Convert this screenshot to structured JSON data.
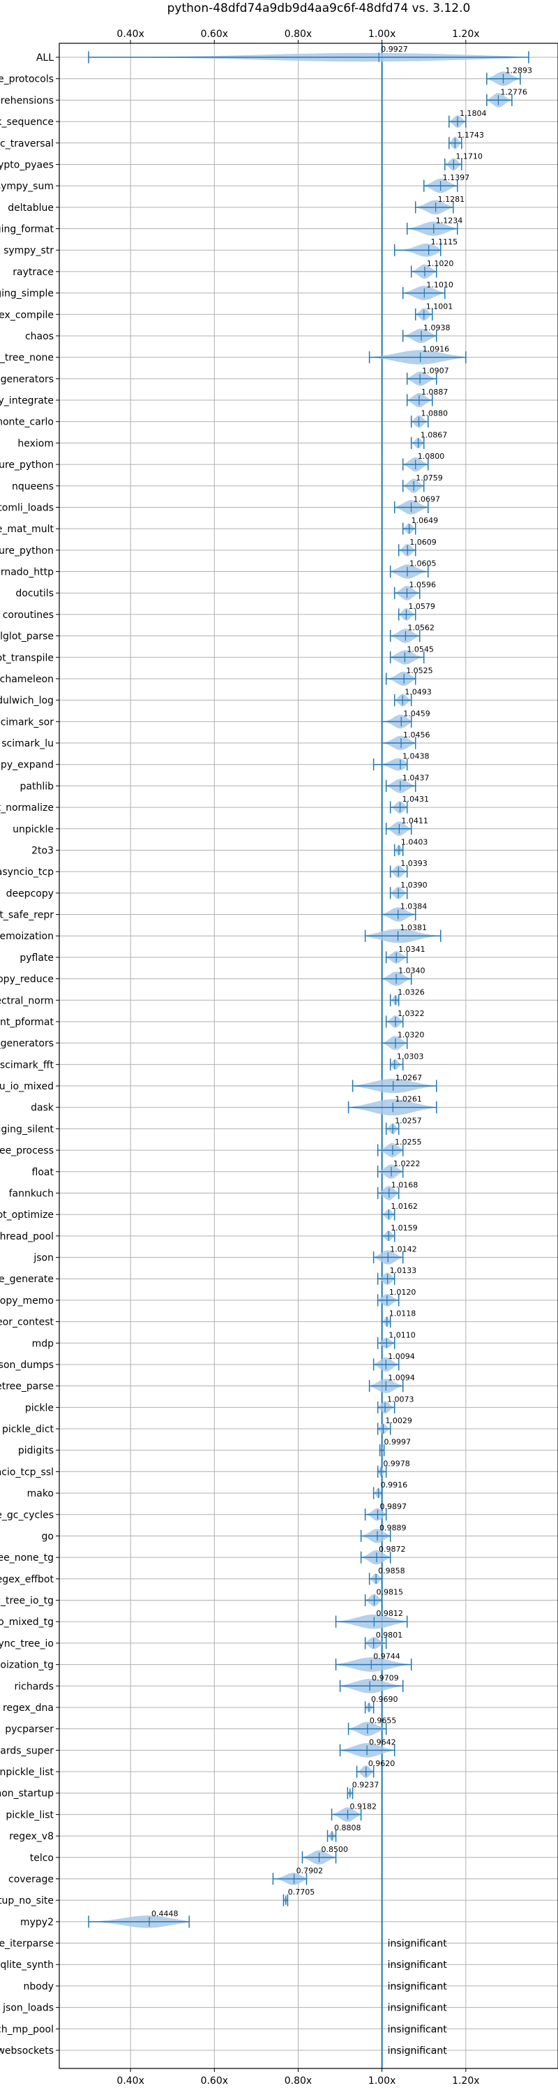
{
  "chart_data": {
    "type": "violin",
    "title": "python-48dfd74a9db9d4aa9c6f-48dfd74 vs. 3.12.0",
    "xlim": [
      0.23,
      1.42
    ],
    "xticks": [
      0.4,
      0.6,
      0.8,
      1.0,
      1.2
    ],
    "xtick_labels": [
      "0.40x",
      "0.60x",
      "0.80x",
      "1.00x",
      "1.20x"
    ],
    "reference_line": 1.0,
    "grid": true,
    "colors": {
      "violin": "#a8c8e8",
      "line": "#1f77b4",
      "grid": "#b0b0b0"
    },
    "insignificant_text": "insignificant",
    "benchmarks": [
      {
        "name": "ALL",
        "value": 0.9927,
        "label": "0.9927",
        "min": 0.3,
        "max": 1.35,
        "width": 0.5
      },
      {
        "name": "typing_runtime_protocols",
        "value": 1.2893,
        "label": "1.2893",
        "min": 1.25,
        "max": 1.33,
        "width": 0.8
      },
      {
        "name": "comprehensions",
        "value": 1.2776,
        "label": "1.2776",
        "min": 1.25,
        "max": 1.31,
        "width": 0.8
      },
      {
        "name": "unpack_sequence",
        "value": 1.1804,
        "label": "1.1804",
        "min": 1.16,
        "max": 1.2,
        "width": 0.7
      },
      {
        "name": "gc_traversal",
        "value": 1.1743,
        "label": "1.1743",
        "min": 1.16,
        "max": 1.19,
        "width": 0.7
      },
      {
        "name": "crypto_pyaes",
        "value": 1.171,
        "label": "1.1710",
        "min": 1.15,
        "max": 1.19,
        "width": 0.7
      },
      {
        "name": "sympy_sum",
        "value": 1.1397,
        "label": "1.1397",
        "min": 1.1,
        "max": 1.18,
        "width": 0.8
      },
      {
        "name": "deltablue",
        "value": 1.1281,
        "label": "1.1281",
        "min": 1.08,
        "max": 1.17,
        "width": 0.8
      },
      {
        "name": "logging_format",
        "value": 1.1234,
        "label": "1.1234",
        "min": 1.06,
        "max": 1.18,
        "width": 0.8
      },
      {
        "name": "sympy_str",
        "value": 1.1115,
        "label": "1.1115",
        "min": 1.03,
        "max": 1.14,
        "width": 0.8
      },
      {
        "name": "raytrace",
        "value": 1.102,
        "label": "1.1020",
        "min": 1.07,
        "max": 1.13,
        "width": 0.8
      },
      {
        "name": "logging_simple",
        "value": 1.101,
        "label": "1.1010",
        "min": 1.05,
        "max": 1.15,
        "width": 0.8
      },
      {
        "name": "regex_compile",
        "value": 1.1001,
        "label": "1.1001",
        "min": 1.08,
        "max": 1.12,
        "width": 0.7
      },
      {
        "name": "chaos",
        "value": 1.0938,
        "label": "1.0938",
        "min": 1.05,
        "max": 1.13,
        "width": 0.8
      },
      {
        "name": "async_tree_none",
        "value": 1.0916,
        "label": "1.0916",
        "min": 0.97,
        "max": 1.2,
        "width": 0.8
      },
      {
        "name": "generators",
        "value": 1.0907,
        "label": "1.0907",
        "min": 1.06,
        "max": 1.13,
        "width": 0.8
      },
      {
        "name": "sympy_integrate",
        "value": 1.0887,
        "label": "1.0887",
        "min": 1.06,
        "max": 1.12,
        "width": 0.8
      },
      {
        "name": "scimark_monte_carlo",
        "value": 1.088,
        "label": "1.0880",
        "min": 1.07,
        "max": 1.11,
        "width": 0.7
      },
      {
        "name": "hexiom",
        "value": 1.0867,
        "label": "1.0867",
        "min": 1.07,
        "max": 1.1,
        "width": 0.6
      },
      {
        "name": "pickle_pure_python",
        "value": 1.08,
        "label": "1.0800",
        "min": 1.05,
        "max": 1.11,
        "width": 0.8
      },
      {
        "name": "nqueens",
        "value": 1.0759,
        "label": "1.0759",
        "min": 1.05,
        "max": 1.1,
        "width": 0.8
      },
      {
        "name": "tomli_loads",
        "value": 1.0697,
        "label": "1.0697",
        "min": 1.03,
        "max": 1.11,
        "width": 0.8
      },
      {
        "name": "scimark_sparse_mat_mult",
        "value": 1.0649,
        "label": "1.0649",
        "min": 1.05,
        "max": 1.08,
        "width": 0.6
      },
      {
        "name": "unpickle_pure_python",
        "value": 1.0609,
        "label": "1.0609",
        "min": 1.04,
        "max": 1.08,
        "width": 0.7
      },
      {
        "name": "tornado_http",
        "value": 1.0605,
        "label": "1.0605",
        "min": 1.02,
        "max": 1.11,
        "width": 0.8
      },
      {
        "name": "docutils",
        "value": 1.0596,
        "label": "1.0596",
        "min": 1.03,
        "max": 1.09,
        "width": 0.8
      },
      {
        "name": "coroutines",
        "value": 1.0579,
        "label": "1.0579",
        "min": 1.04,
        "max": 1.08,
        "width": 0.7
      },
      {
        "name": "sqlglot_parse",
        "value": 1.0562,
        "label": "1.0562",
        "min": 1.02,
        "max": 1.09,
        "width": 0.8
      },
      {
        "name": "sqlglot_transpile",
        "value": 1.0545,
        "label": "1.0545",
        "min": 1.02,
        "max": 1.1,
        "width": 0.8
      },
      {
        "name": "chameleon",
        "value": 1.0525,
        "label": "1.0525",
        "min": 1.01,
        "max": 1.08,
        "width": 0.8
      },
      {
        "name": "dulwich_log",
        "value": 1.0493,
        "label": "1.0493",
        "min": 1.03,
        "max": 1.07,
        "width": 0.7
      },
      {
        "name": "scimark_sor",
        "value": 1.0459,
        "label": "1.0459",
        "min": 1.0,
        "max": 1.07,
        "width": 0.8
      },
      {
        "name": "scimark_lu",
        "value": 1.0456,
        "label": "1.0456",
        "min": 1.0,
        "max": 1.08,
        "width": 0.8
      },
      {
        "name": "sympy_expand",
        "value": 1.0438,
        "label": "1.0438",
        "min": 0.98,
        "max": 1.06,
        "width": 0.8
      },
      {
        "name": "pathlib",
        "value": 1.0437,
        "label": "1.0437",
        "min": 1.01,
        "max": 1.08,
        "width": 0.8
      },
      {
        "name": "sqlglot_normalize",
        "value": 1.0431,
        "label": "1.0431",
        "min": 1.02,
        "max": 1.06,
        "width": 0.7
      },
      {
        "name": "unpickle",
        "value": 1.0411,
        "label": "1.0411",
        "min": 1.01,
        "max": 1.07,
        "width": 0.8
      },
      {
        "name": "2to3",
        "value": 1.0403,
        "label": "1.0403",
        "min": 1.03,
        "max": 1.05,
        "width": 0.6
      },
      {
        "name": "asyncio_tcp",
        "value": 1.0393,
        "label": "1.0393",
        "min": 1.02,
        "max": 1.06,
        "width": 0.7
      },
      {
        "name": "deepcopy",
        "value": 1.039,
        "label": "1.0390",
        "min": 1.02,
        "max": 1.06,
        "width": 0.7
      },
      {
        "name": "pprint_safe_repr",
        "value": 1.0384,
        "label": "1.0384",
        "min": 1.0,
        "max": 1.08,
        "width": 0.8
      },
      {
        "name": "async_tree_memoization",
        "value": 1.0381,
        "label": "1.0381",
        "min": 0.96,
        "max": 1.14,
        "width": 0.8
      },
      {
        "name": "pyflate",
        "value": 1.0341,
        "label": "1.0341",
        "min": 1.01,
        "max": 1.06,
        "width": 0.7
      },
      {
        "name": "deepcopy_reduce",
        "value": 1.034,
        "label": "1.0340",
        "min": 1.0,
        "max": 1.07,
        "width": 0.8
      },
      {
        "name": "spectral_norm",
        "value": 1.0326,
        "label": "1.0326",
        "min": 1.02,
        "max": 1.04,
        "width": 0.6
      },
      {
        "name": "pprint_pformat",
        "value": 1.0322,
        "label": "1.0322",
        "min": 1.01,
        "max": 1.05,
        "width": 0.7
      },
      {
        "name": "async_generators",
        "value": 1.032,
        "label": "1.0320",
        "min": 1.0,
        "max": 1.06,
        "width": 0.8
      },
      {
        "name": "scimark_fft",
        "value": 1.0303,
        "label": "1.0303",
        "min": 1.02,
        "max": 1.05,
        "width": 0.6
      },
      {
        "name": "async_tree_cpu_io_mixed",
        "value": 1.0267,
        "label": "1.0267",
        "min": 0.93,
        "max": 1.13,
        "width": 0.8
      },
      {
        "name": "dask",
        "value": 1.0261,
        "label": "1.0261",
        "min": 0.92,
        "max": 1.13,
        "width": 0.9
      },
      {
        "name": "logging_silent",
        "value": 1.0257,
        "label": "1.0257",
        "min": 1.01,
        "max": 1.04,
        "width": 0.6
      },
      {
        "name": "xml_etree_process",
        "value": 1.0255,
        "label": "1.0255",
        "min": 0.99,
        "max": 1.05,
        "width": 0.8
      },
      {
        "name": "float",
        "value": 1.0222,
        "label": "1.0222",
        "min": 0.99,
        "max": 1.05,
        "width": 0.8
      },
      {
        "name": "fannkuch",
        "value": 1.0168,
        "label": "1.0168",
        "min": 0.99,
        "max": 1.04,
        "width": 0.8
      },
      {
        "name": "sqlglot_optimize",
        "value": 1.0162,
        "label": "1.0162",
        "min": 1.0,
        "max": 1.03,
        "width": 0.6
      },
      {
        "name": "bench_thread_pool",
        "value": 1.0159,
        "label": "1.0159",
        "min": 1.0,
        "max": 1.03,
        "width": 0.6
      },
      {
        "name": "json",
        "value": 1.0142,
        "label": "1.0142",
        "min": 0.98,
        "max": 1.05,
        "width": 0.8
      },
      {
        "name": "xml_etree_generate",
        "value": 1.0133,
        "label": "1.0133",
        "min": 0.99,
        "max": 1.03,
        "width": 0.7
      },
      {
        "name": "deepcopy_memo",
        "value": 1.012,
        "label": "1.0120",
        "min": 0.99,
        "max": 1.04,
        "width": 0.7
      },
      {
        "name": "meteor_contest",
        "value": 1.0118,
        "label": "1.0118",
        "min": 1.0,
        "max": 1.02,
        "width": 0.6
      },
      {
        "name": "mdp",
        "value": 1.011,
        "label": "1.0110",
        "min": 0.99,
        "max": 1.03,
        "width": 0.6
      },
      {
        "name": "json_dumps",
        "value": 1.0094,
        "label": "1.0094",
        "min": 0.98,
        "max": 1.04,
        "width": 0.8
      },
      {
        "name": "xml_etree_parse",
        "value": 1.0094,
        "label": "1.0094",
        "min": 0.97,
        "max": 1.05,
        "width": 0.8
      },
      {
        "name": "pickle",
        "value": 1.0073,
        "label": "1.0073",
        "min": 0.99,
        "max": 1.03,
        "width": 0.7
      },
      {
        "name": "pickle_dict",
        "value": 1.0029,
        "label": "1.0029",
        "min": 0.99,
        "max": 1.02,
        "width": 0.6
      },
      {
        "name": "pidigits",
        "value": 0.9997,
        "label": "0.9997",
        "min": 0.995,
        "max": 1.005,
        "width": 0.4
      },
      {
        "name": "asyncio_tcp_ssl",
        "value": 0.9978,
        "label": "0.9978",
        "min": 0.99,
        "max": 1.01,
        "width": 0.5
      },
      {
        "name": "mako",
        "value": 0.9916,
        "label": "0.9916",
        "min": 0.98,
        "max": 1.0,
        "width": 0.6
      },
      {
        "name": "create_gc_cycles",
        "value": 0.9897,
        "label": "0.9897",
        "min": 0.96,
        "max": 1.01,
        "width": 0.7
      },
      {
        "name": "go",
        "value": 0.9889,
        "label": "0.9889",
        "min": 0.95,
        "max": 1.02,
        "width": 0.8
      },
      {
        "name": "async_tree_none_tg",
        "value": 0.9872,
        "label": "0.9872",
        "min": 0.95,
        "max": 1.02,
        "width": 0.8
      },
      {
        "name": "regex_effbot",
        "value": 0.9858,
        "label": "0.9858",
        "min": 0.97,
        "max": 1.0,
        "width": 0.6
      },
      {
        "name": "async_tree_io_tg",
        "value": 0.9815,
        "label": "0.9815",
        "min": 0.96,
        "max": 1.0,
        "width": 0.7
      },
      {
        "name": "async_tree_cpu_io_mixed_tg",
        "value": 0.9812,
        "label": "0.9812",
        "min": 0.89,
        "max": 1.06,
        "width": 0.8
      },
      {
        "name": "async_tree_io",
        "value": 0.9801,
        "label": "0.9801",
        "min": 0.96,
        "max": 1.01,
        "width": 0.7
      },
      {
        "name": "async_tree_memoization_tg",
        "value": 0.9744,
        "label": "0.9744",
        "min": 0.89,
        "max": 1.07,
        "width": 0.8
      },
      {
        "name": "richards",
        "value": 0.9709,
        "label": "0.9709",
        "min": 0.9,
        "max": 1.05,
        "width": 0.8
      },
      {
        "name": "regex_dna",
        "value": 0.969,
        "label": "0.9690",
        "min": 0.96,
        "max": 0.98,
        "width": 0.5
      },
      {
        "name": "pycparser",
        "value": 0.9655,
        "label": "0.9655",
        "min": 0.92,
        "max": 1.01,
        "width": 0.8
      },
      {
        "name": "richards_super",
        "value": 0.9642,
        "label": "0.9642",
        "min": 0.9,
        "max": 1.03,
        "width": 0.8
      },
      {
        "name": "unpickle_list",
        "value": 0.962,
        "label": "0.9620",
        "min": 0.94,
        "max": 0.98,
        "width": 0.7
      },
      {
        "name": "python_startup",
        "value": 0.9237,
        "label": "0.9237",
        "min": 0.918,
        "max": 0.93,
        "width": 0.4
      },
      {
        "name": "pickle_list",
        "value": 0.9182,
        "label": "0.9182",
        "min": 0.88,
        "max": 0.95,
        "width": 0.8
      },
      {
        "name": "regex_v8",
        "value": 0.8808,
        "label": "0.8808",
        "min": 0.87,
        "max": 0.89,
        "width": 0.5
      },
      {
        "name": "telco",
        "value": 0.85,
        "label": "0.8500",
        "min": 0.81,
        "max": 0.89,
        "width": 0.8
      },
      {
        "name": "coverage",
        "value": 0.7902,
        "label": "0.7902",
        "min": 0.74,
        "max": 0.82,
        "width": 0.7
      },
      {
        "name": "python_startup_no_site",
        "value": 0.7705,
        "label": "0.7705",
        "min": 0.765,
        "max": 0.775,
        "width": 0.5
      },
      {
        "name": "mypy2",
        "value": 0.4448,
        "label": "0.4448",
        "min": 0.3,
        "max": 0.54,
        "width": 0.7
      },
      {
        "name": "xml_etree_iterparse",
        "value": null,
        "label": "",
        "min": null,
        "max": null,
        "width": 0,
        "insignificant": true
      },
      {
        "name": "sqlite_synth",
        "value": null,
        "label": "",
        "min": null,
        "max": null,
        "width": 0,
        "insignificant": true
      },
      {
        "name": "nbody",
        "value": null,
        "label": "",
        "min": null,
        "max": null,
        "width": 0,
        "insignificant": true
      },
      {
        "name": "json_loads",
        "value": null,
        "label": "",
        "min": null,
        "max": null,
        "width": 0,
        "insignificant": true
      },
      {
        "name": "bench_mp_pool",
        "value": null,
        "label": "",
        "min": null,
        "max": null,
        "width": 0,
        "insignificant": true
      },
      {
        "name": "asyncio_websockets",
        "value": null,
        "label": "",
        "min": null,
        "max": null,
        "width": 0,
        "insignificant": true
      }
    ]
  }
}
